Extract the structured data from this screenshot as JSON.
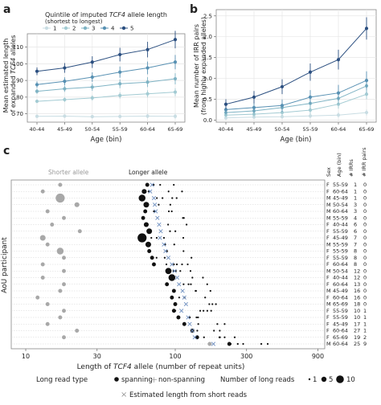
{
  "chart_data": [
    {
      "panel": "a",
      "type": "line",
      "legend_title_1": "Quintile of imputed",
      "legend_title_tcf4": "TCF4",
      "legend_title_2": "allele length",
      "legend_subtitle": "(shortest to longest)",
      "legend_placement": "top",
      "ylabel_1": "Mean estimated length",
      "ylabel_2a": "of expanded",
      "ylabel_tcf4": "TCF4",
      "ylabel_2b": "alleles",
      "xlabel": "Age (bin)",
      "categories": [
        "40-44",
        "45-49",
        "50-54",
        "55-59",
        "60-64",
        "65-69"
      ],
      "yticks": [
        70,
        80,
        90,
        100,
        110
      ],
      "ylim": [
        65,
        118
      ],
      "grid": true,
      "series": [
        {
          "name": "1",
          "color": "#c9dde3",
          "values": [
            68.5,
            68.6,
            68.3,
            68.4,
            68.6,
            68.5
          ]
        },
        {
          "name": "2",
          "color": "#a3cbd3",
          "values": [
            77.5,
            78.5,
            79.5,
            81,
            82,
            83
          ]
        },
        {
          "name": "3",
          "color": "#7fb3c4",
          "values": [
            83.5,
            85,
            86,
            88,
            89,
            91
          ]
        },
        {
          "name": "4",
          "color": "#5891b3",
          "values": [
            87.5,
            89.5,
            92,
            95,
            97.5,
            101
          ]
        },
        {
          "name": "5",
          "color": "#2b4f80",
          "values": [
            95.5,
            97.5,
            101,
            105.5,
            108.5,
            114.5
          ]
        }
      ]
    },
    {
      "panel": "b",
      "type": "line",
      "ylabel_1": "Mean number of IRR pairs",
      "ylabel_2": "(from highly expanded alleles)",
      "xlabel": "Age (bin)",
      "categories": [
        "40-44",
        "45-49",
        "50-54",
        "55-59",
        "60-64",
        "65-69"
      ],
      "yticks": [
        0.0,
        0.5,
        1.0,
        1.5,
        2.0,
        2.5
      ],
      "ylim": [
        -0.05,
        2.65
      ],
      "grid": true,
      "series": [
        {
          "name": "1",
          "color": "#c9dde3",
          "values": [
            0.05,
            0.07,
            0.08,
            0.1,
            0.12,
            0.18
          ]
        },
        {
          "name": "2",
          "color": "#a3cbd3",
          "values": [
            0.12,
            0.14,
            0.18,
            0.24,
            0.38,
            0.62
          ]
        },
        {
          "name": "3",
          "color": "#7fb3c4",
          "values": [
            0.18,
            0.22,
            0.3,
            0.4,
            0.52,
            0.82
          ]
        },
        {
          "name": "4",
          "color": "#5891b3",
          "values": [
            0.25,
            0.3,
            0.35,
            0.55,
            0.65,
            0.95
          ]
        },
        {
          "name": "5",
          "color": "#2b4f80",
          "values": [
            0.38,
            0.55,
            0.8,
            1.15,
            1.45,
            2.2
          ]
        }
      ]
    },
    {
      "panel": "c",
      "type": "scatter",
      "xlabel_1": "Length of",
      "xlabel_tcf4": "TCF4",
      "xlabel_2": "allele (number of repeat units)",
      "ylabel": "AoU participant",
      "x_scale": "log",
      "xticks": [
        10,
        30,
        100,
        300,
        900
      ],
      "xlim": [
        8,
        1000
      ],
      "shorter_label": "Shorter allele",
      "longer_label": "Longer allele",
      "col_headers": [
        "Sex",
        "Age (bin)",
        "# IRRs",
        "# IRR pairs"
      ],
      "participants": [
        {
          "sex": "F",
          "age": "55-59",
          "irr": "1",
          "pairs": "0",
          "short_x": 17,
          "short_n": 1,
          "long_x": 65,
          "long_n": 1,
          "est_x": 70
        },
        {
          "sex": "F",
          "age": "60-64",
          "irr": "1",
          "pairs": "0",
          "short_x": 13,
          "short_n": 1,
          "long_x": 62,
          "long_n": 2,
          "est_x": 68
        },
        {
          "sex": "M",
          "age": "45-49",
          "irr": "1",
          "pairs": "0",
          "short_x": 17,
          "short_n": 10,
          "long_x": 60,
          "long_n": 5,
          "est_x": 72
        },
        {
          "sex": "M",
          "age": "50-54",
          "irr": "3",
          "pairs": "0",
          "short_x": 22,
          "short_n": 2,
          "long_x": 64,
          "long_n": 3,
          "est_x": 73
        },
        {
          "sex": "M",
          "age": "60-64",
          "irr": "3",
          "pairs": "0",
          "short_x": 14,
          "short_n": 1,
          "long_x": 63,
          "long_n": 1,
          "est_x": 74
        },
        {
          "sex": "M",
          "age": "55-59",
          "irr": "4",
          "pairs": "0",
          "short_x": 18,
          "short_n": 1,
          "long_x": 61,
          "long_n": 1,
          "est_x": 76
        },
        {
          "sex": "F",
          "age": "40-44",
          "irr": "6",
          "pairs": "0",
          "short_x": 15,
          "short_n": 1,
          "long_x": 64,
          "long_n": 2,
          "est_x": 78
        },
        {
          "sex": "F",
          "age": "55-59",
          "irr": "6",
          "pairs": "0",
          "short_x": 23,
          "short_n": 1,
          "long_x": 67,
          "long_n": 3,
          "est_x": 80
        },
        {
          "sex": "F",
          "age": "45-49",
          "irr": "7",
          "pairs": "0",
          "short_x": 13,
          "short_n": 3,
          "long_x": 60,
          "long_n": 10,
          "est_x": 79
        },
        {
          "sex": "M",
          "age": "55-59",
          "irr": "7",
          "pairs": "0",
          "short_x": 14,
          "short_n": 1,
          "long_x": 66,
          "long_n": 3,
          "est_x": 84
        },
        {
          "sex": "F",
          "age": "55-59",
          "irr": "8",
          "pairs": "0",
          "short_x": 17,
          "short_n": 5,
          "long_x": 67,
          "long_n": 1,
          "est_x": 86
        },
        {
          "sex": "F",
          "age": "55-59",
          "irr": "8",
          "pairs": "0",
          "short_x": 18,
          "short_n": 1,
          "long_x": 70,
          "long_n": 1,
          "est_x": 90
        },
        {
          "sex": "F",
          "age": "60-64",
          "irr": "8",
          "pairs": "0",
          "short_x": 13,
          "short_n": 1,
          "long_x": 72,
          "long_n": 1,
          "est_x": 95
        },
        {
          "sex": "M",
          "age": "50-54",
          "irr": "12",
          "pairs": "0",
          "short_x": 18,
          "short_n": 1,
          "long_x": 90,
          "long_n": 4,
          "est_x": 99
        },
        {
          "sex": "F",
          "age": "40-44",
          "irr": "12",
          "pairs": "0",
          "short_x": 13,
          "short_n": 1,
          "long_x": 95,
          "long_n": 5,
          "est_x": 103
        },
        {
          "sex": "F",
          "age": "60-64",
          "irr": "13",
          "pairs": "0",
          "short_x": 18,
          "short_n": 1,
          "long_x": 88,
          "long_n": 1,
          "est_x": 106
        },
        {
          "sex": "M",
          "age": "45-49",
          "irr": "16",
          "pairs": "0",
          "short_x": 17,
          "short_n": 1,
          "long_x": 98,
          "long_n": 1,
          "est_x": 112
        },
        {
          "sex": "F",
          "age": "60-64",
          "irr": "16",
          "pairs": "0",
          "short_x": 12,
          "short_n": 1,
          "long_x": 95,
          "long_n": 1,
          "est_x": 115
        },
        {
          "sex": "M",
          "age": "65-69",
          "irr": "18",
          "pairs": "0",
          "short_x": 14,
          "short_n": 1,
          "long_x": 100,
          "long_n": 1,
          "est_x": 118
        },
        {
          "sex": "F",
          "age": "55-59",
          "irr": "10",
          "pairs": "1",
          "short_x": 18,
          "short_n": 1,
          "long_x": 98,
          "long_n": 1,
          "est_x": 110
        },
        {
          "sex": "F",
          "age": "55-59",
          "irr": "10",
          "pairs": "1",
          "short_x": 17,
          "short_n": 1,
          "long_x": 105,
          "long_n": 1,
          "est_x": 122
        },
        {
          "sex": "F",
          "age": "45-49",
          "irr": "17",
          "pairs": "1",
          "short_x": 14,
          "short_n": 1,
          "long_x": 115,
          "long_n": 1,
          "est_x": 125
        },
        {
          "sex": "F",
          "age": "60-64",
          "irr": "27",
          "pairs": "1",
          "short_x": 22,
          "short_n": 1,
          "long_x": 130,
          "long_n": 1,
          "est_x": 130
        },
        {
          "sex": "F",
          "age": "65-69",
          "irr": "19",
          "pairs": "2",
          "short_x": 18,
          "short_n": 1,
          "long_x": 140,
          "long_n": 1,
          "est_x": 135
        },
        {
          "sex": "M",
          "age": "60-64",
          "irr": "25",
          "pairs": "9",
          "short_x": 170,
          "short_n": 1,
          "long_x": 230,
          "long_n": 1,
          "est_x": 180
        }
      ],
      "legend": {
        "read_type_title": "Long read type",
        "spanning": "spanning",
        "non_spanning": "non-spanning",
        "count_title": "Number of long reads",
        "count_values": [
          "1",
          "5",
          "10"
        ],
        "estimate": "Estimated length from short reads"
      }
    }
  ]
}
